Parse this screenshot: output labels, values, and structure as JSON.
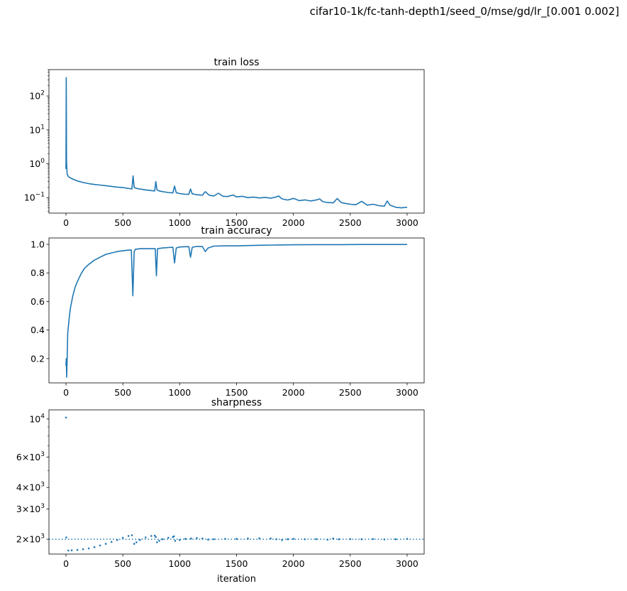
{
  "figure_title": "cifar10-1k/fc-tanh-depth1/seed_0/mse/gd/lr_[0.001 0.002]",
  "colors": {
    "series": "#1f77b4",
    "axes": "#000000"
  },
  "chart_data": [
    {
      "type": "line",
      "title": "train loss",
      "xlabel": "",
      "ylabel": "",
      "yscale": "log",
      "xlim": [
        -150,
        3150
      ],
      "ylim": [
        0.035,
        600
      ],
      "grid": false,
      "xticks": [
        0,
        500,
        1000,
        1500,
        2000,
        2500,
        3000
      ],
      "xtick_labels": [
        "0",
        "500",
        "1000",
        "1500",
        "2000",
        "2500",
        "3000"
      ],
      "yticks": [
        0.1,
        1,
        10,
        100
      ],
      "ytick_labels": [
        {
          "base": "10",
          "exp": "−1"
        },
        {
          "base": "10",
          "exp": "0"
        },
        {
          "base": "10",
          "exp": "1"
        },
        {
          "base": "10",
          "exp": "2"
        }
      ],
      "x": [
        0,
        2,
        5,
        10,
        20,
        40,
        70,
        100,
        150,
        200,
        250,
        300,
        350,
        400,
        450,
        500,
        560,
        580,
        590,
        600,
        620,
        650,
        700,
        750,
        780,
        790,
        800,
        820,
        850,
        900,
        940,
        955,
        970,
        1000,
        1050,
        1080,
        1095,
        1110,
        1150,
        1200,
        1225,
        1260,
        1300,
        1340,
        1380,
        1420,
        1470,
        1500,
        1550,
        1600,
        1650,
        1700,
        1750,
        1800,
        1850,
        1870,
        1900,
        1950,
        2000,
        2050,
        2100,
        2150,
        2200,
        2230,
        2260,
        2300,
        2350,
        2385,
        2420,
        2450,
        2500,
        2550,
        2600,
        2650,
        2700,
        2750,
        2800,
        2825,
        2850,
        2900,
        2950,
        3000
      ],
      "y": [
        0.7,
        350,
        1.2,
        0.5,
        0.42,
        0.38,
        0.34,
        0.31,
        0.28,
        0.26,
        0.245,
        0.235,
        0.225,
        0.215,
        0.205,
        0.198,
        0.185,
        0.18,
        0.44,
        0.2,
        0.188,
        0.18,
        0.17,
        0.162,
        0.158,
        0.3,
        0.17,
        0.158,
        0.15,
        0.142,
        0.138,
        0.22,
        0.14,
        0.132,
        0.126,
        0.125,
        0.18,
        0.13,
        0.122,
        0.118,
        0.15,
        0.118,
        0.112,
        0.135,
        0.11,
        0.108,
        0.12,
        0.105,
        0.11,
        0.1,
        0.104,
        0.098,
        0.102,
        0.096,
        0.105,
        0.112,
        0.092,
        0.085,
        0.095,
        0.082,
        0.086,
        0.08,
        0.085,
        0.092,
        0.076,
        0.072,
        0.07,
        0.094,
        0.072,
        0.068,
        0.064,
        0.062,
        0.078,
        0.06,
        0.064,
        0.058,
        0.056,
        0.08,
        0.06,
        0.052,
        0.05,
        0.052
      ]
    },
    {
      "type": "line",
      "title": "train accuracy",
      "xlabel": "",
      "ylabel": "",
      "yscale": "linear",
      "xlim": [
        -150,
        3150
      ],
      "ylim": [
        0.03,
        1.045
      ],
      "grid": false,
      "xticks": [
        0,
        500,
        1000,
        1500,
        2000,
        2500,
        3000
      ],
      "xtick_labels": [
        "0",
        "500",
        "1000",
        "1500",
        "2000",
        "2500",
        "3000"
      ],
      "yticks": [
        0.2,
        0.4,
        0.6,
        0.8,
        1.0
      ],
      "ytick_labels": [
        "0.2",
        "0.4",
        "0.6",
        "0.8",
        "1.0"
      ],
      "x": [
        0,
        3,
        6,
        10,
        15,
        20,
        30,
        40,
        60,
        80,
        100,
        130,
        160,
        200,
        250,
        300,
        350,
        400,
        450,
        500,
        550,
        575,
        588,
        600,
        610,
        650,
        700,
        750,
        785,
        795,
        805,
        850,
        900,
        940,
        955,
        970,
        1000,
        1050,
        1080,
        1095,
        1110,
        1150,
        1200,
        1225,
        1250,
        1300,
        1400,
        1500,
        1600,
        1700,
        1800,
        1900,
        2000,
        2200,
        2400,
        2600,
        2800,
        3000
      ],
      "y": [
        0.15,
        0.2,
        0.07,
        0.18,
        0.38,
        0.42,
        0.5,
        0.56,
        0.64,
        0.7,
        0.74,
        0.79,
        0.83,
        0.86,
        0.89,
        0.91,
        0.93,
        0.94,
        0.95,
        0.955,
        0.96,
        0.96,
        0.64,
        0.95,
        0.965,
        0.97,
        0.97,
        0.97,
        0.97,
        0.78,
        0.97,
        0.975,
        0.978,
        0.98,
        0.87,
        0.975,
        0.982,
        0.984,
        0.984,
        0.91,
        0.98,
        0.986,
        0.985,
        0.95,
        0.975,
        0.988,
        0.99,
        0.99,
        0.992,
        0.994,
        0.995,
        0.996,
        0.997,
        0.998,
        0.998,
        0.999,
        0.999,
        0.999
      ]
    },
    {
      "type": "scatter",
      "title": "sharpness",
      "xlabel": "iteration",
      "ylabel": "",
      "yscale": "log",
      "xlim": [
        -150,
        3150
      ],
      "ylim": [
        1640,
        11300
      ],
      "grid": false,
      "reference_line": {
        "y": 2000,
        "style": "dotted"
      },
      "xticks": [
        0,
        500,
        1000,
        1500,
        2000,
        2500,
        3000
      ],
      "xtick_labels": [
        "0",
        "500",
        "1000",
        "1500",
        "2000",
        "2500",
        "3000"
      ],
      "yticks": [
        2000,
        3000,
        4000,
        6000,
        10000
      ],
      "ytick_labels": [
        {
          "base": "2×10",
          "exp": "3"
        },
        {
          "base": "3×10",
          "exp": "3"
        },
        {
          "base": "4×10",
          "exp": "3"
        },
        {
          "base": "6×10",
          "exp": "3"
        },
        {
          "base": "10",
          "exp": "4"
        }
      ],
      "x": [
        0,
        2,
        20,
        50,
        100,
        150,
        200,
        250,
        300,
        350,
        400,
        450,
        500,
        550,
        580,
        600,
        620,
        650,
        700,
        750,
        780,
        790,
        800,
        820,
        850,
        900,
        940,
        950,
        960,
        1000,
        1050,
        1100,
        1150,
        1200,
        1250,
        1300,
        1400,
        1500,
        1600,
        1700,
        1800,
        1850,
        1900,
        1950,
        2000,
        2100,
        2200,
        2300,
        2350,
        2400,
        2500,
        2600,
        2700,
        2800,
        2900,
        3000
      ],
      "y": [
        10200,
        2050,
        1720,
        1725,
        1735,
        1750,
        1770,
        1800,
        1840,
        1880,
        1930,
        1980,
        2040,
        2090,
        2110,
        1880,
        1920,
        1980,
        2050,
        2090,
        2100,
        2060,
        1920,
        1960,
        2000,
        2040,
        2060,
        2080,
        1960,
        1980,
        2010,
        2020,
        2030,
        2020,
        1990,
        2000,
        2010,
        2010,
        2020,
        2025,
        2020,
        2000,
        1980,
        2000,
        2010,
        2000,
        2005,
        1990,
        2020,
        2000,
        2005,
        2000,
        2005,
        1995,
        2000,
        2010
      ]
    }
  ]
}
